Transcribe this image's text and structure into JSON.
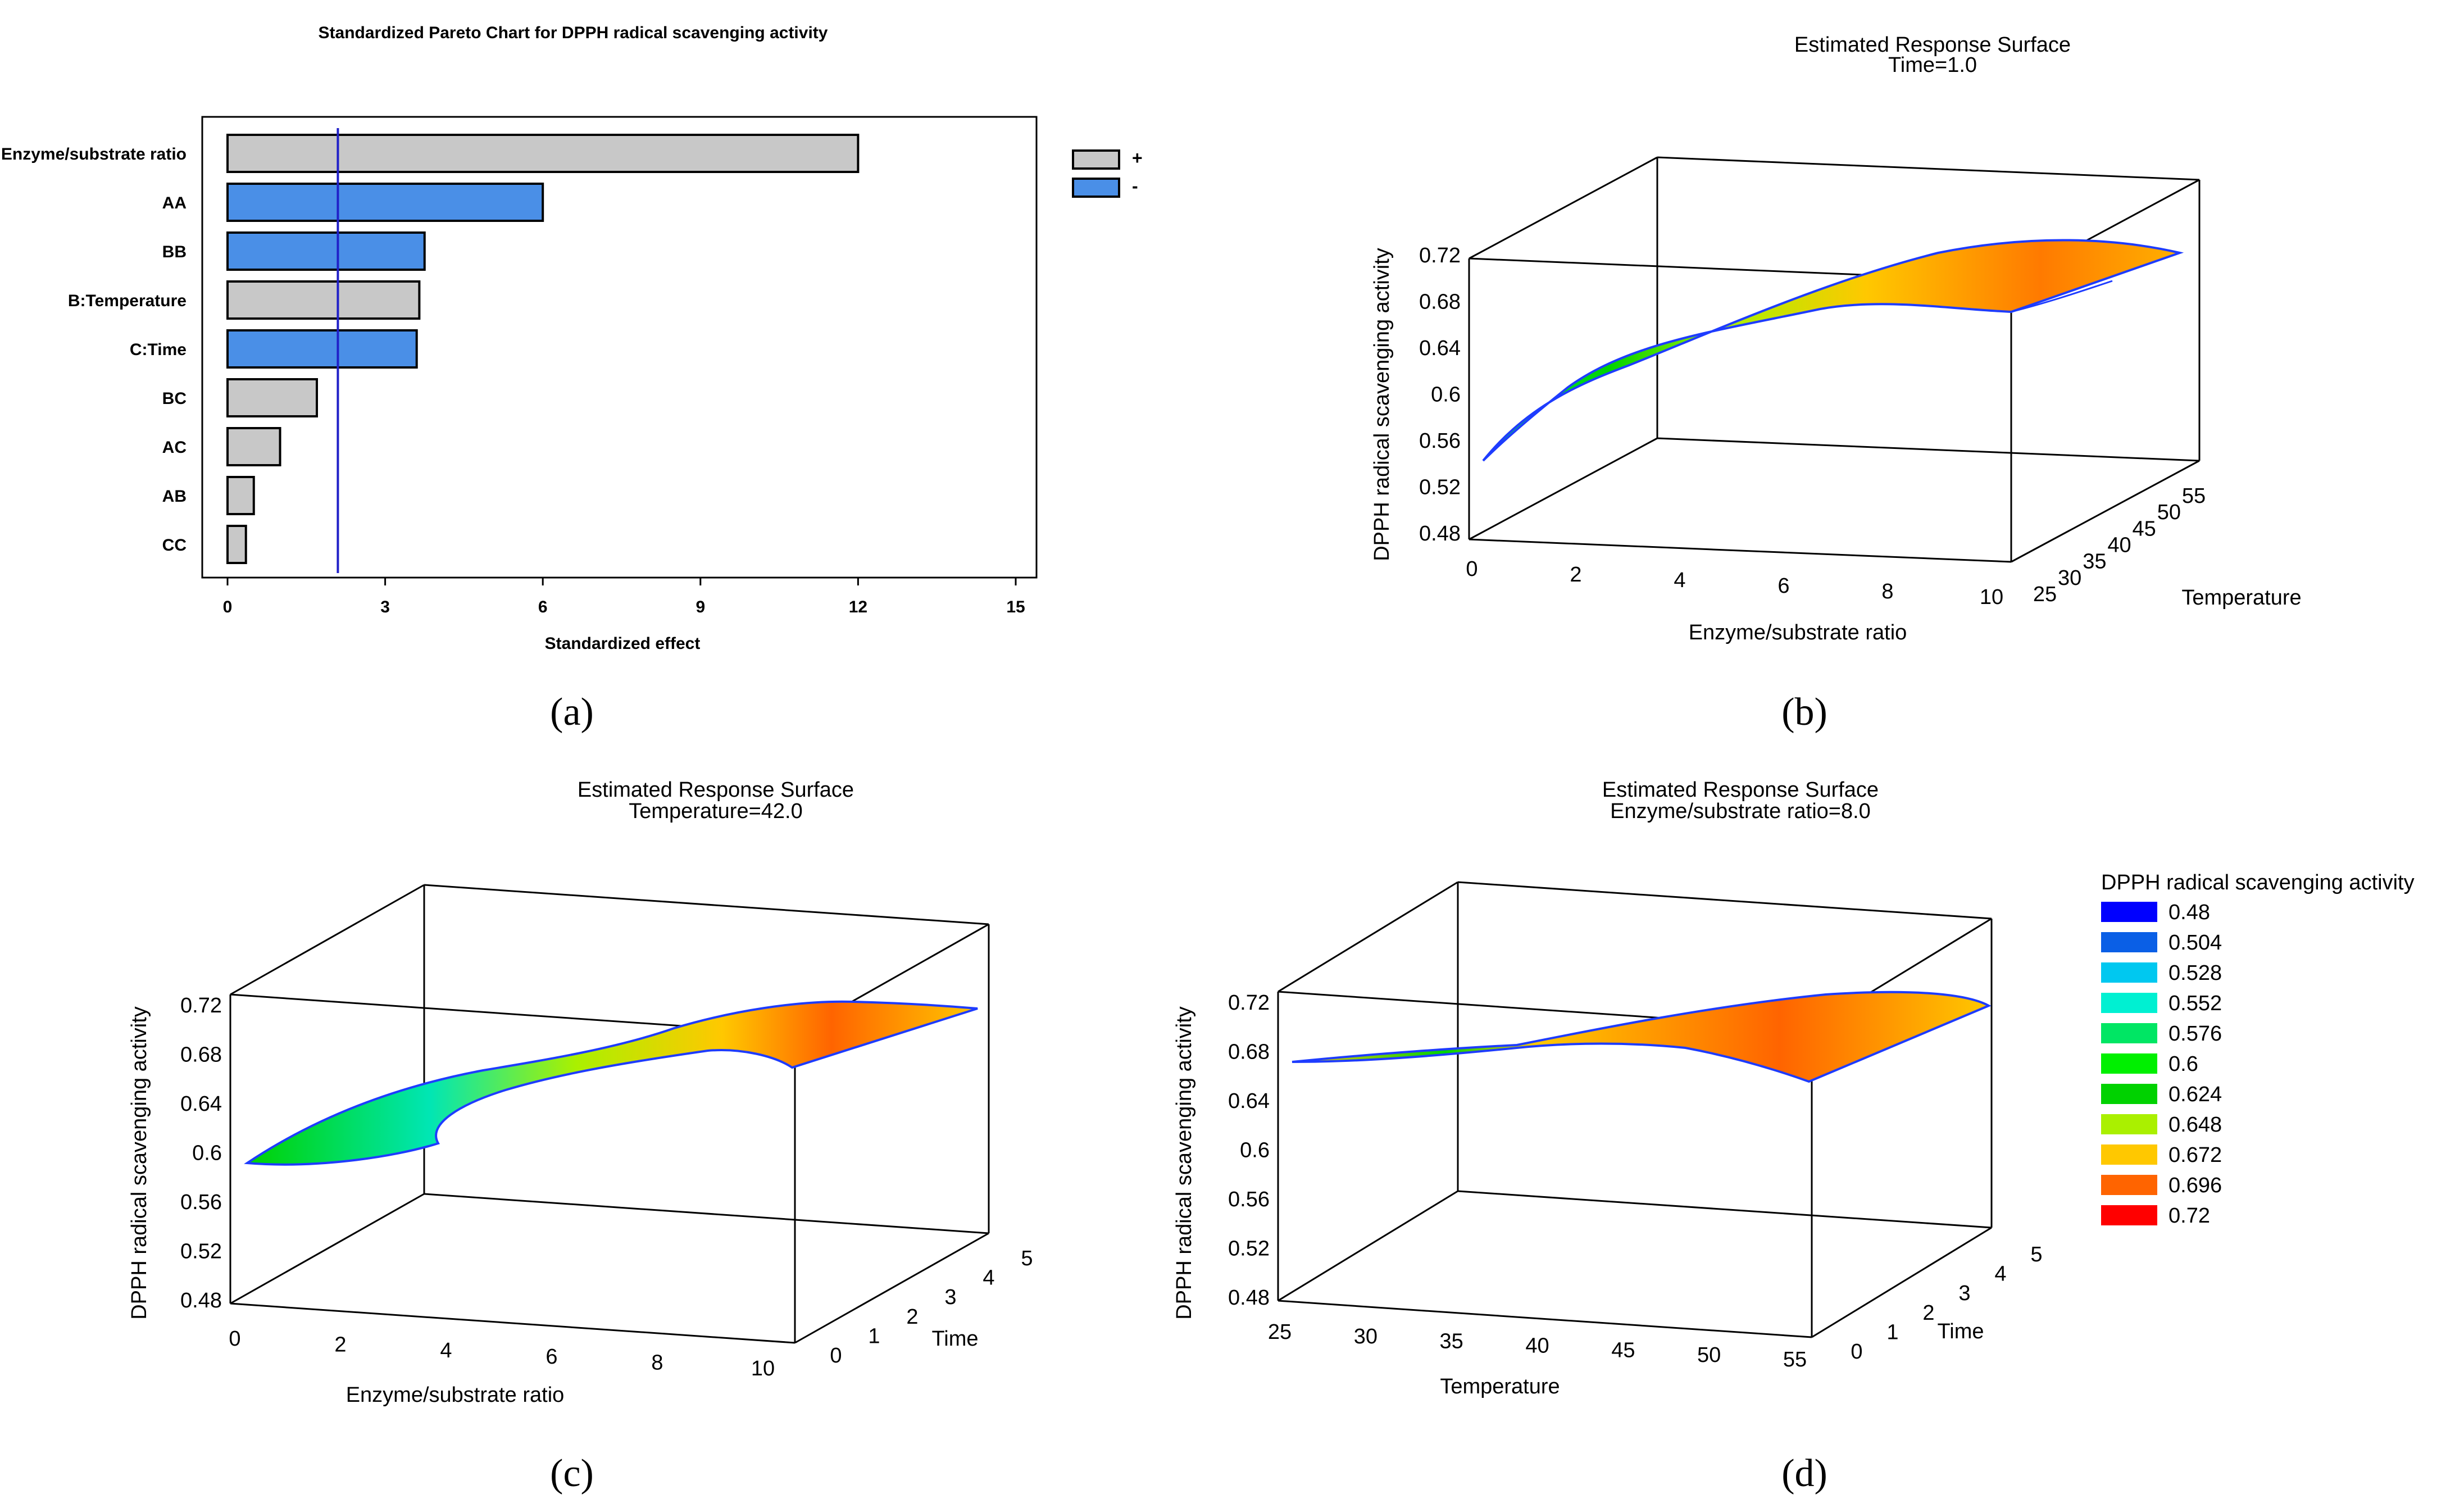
{
  "chart_data": [
    {
      "panel": "(a)",
      "type": "bar",
      "orientation": "horizontal",
      "title": "Standardized Pareto Chart for DPPH radical scavenging activity",
      "xlabel": "Standardized effect",
      "xlim": [
        0,
        15
      ],
      "xticks": [
        0,
        3,
        6,
        9,
        12,
        15
      ],
      "categories": [
        "A:Enzyme/substrate ratio",
        "AA",
        "BB",
        "B:Temperature",
        "C:Time",
        "BC",
        "AC",
        "AB",
        "CC"
      ],
      "values": [
        12.0,
        6.0,
        3.75,
        3.65,
        3.6,
        1.7,
        1.0,
        0.5,
        0.35
      ],
      "signs": [
        "+",
        "-",
        "-",
        "+",
        "-",
        "+",
        "+",
        "+",
        "+"
      ],
      "reference_line": 2.1,
      "legend": [
        {
          "label": "+",
          "color": "#c8c8c8"
        },
        {
          "label": "-",
          "color": "#4a8fe7"
        }
      ],
      "legend_position": "top-right"
    },
    {
      "panel": "(b)",
      "type": "surface3d",
      "title": "Estimated Response Surface",
      "subtitle": "Time=1.0",
      "xlabel": "Enzyme/substrate ratio",
      "ylabel": "Temperature",
      "zlabel": "DPPH radical scavenging activity",
      "xticks": [
        "0",
        "2",
        "4",
        "6",
        "8",
        "10"
      ],
      "yticks": [
        "25",
        "30",
        "35",
        "40",
        "45",
        "50",
        "55"
      ],
      "zticks": [
        "0.48",
        "0.52",
        "0.56",
        "0.6",
        "0.64",
        "0.68",
        "0.72"
      ],
      "xlim": [
        0,
        10
      ],
      "ylim": [
        25,
        55
      ],
      "zlim": [
        0.48,
        0.72
      ]
    },
    {
      "panel": "(c)",
      "type": "surface3d",
      "title": "Estimated Response Surface",
      "subtitle": "Temperature=42.0",
      "xlabel": "Enzyme/substrate ratio",
      "ylabel": "Time",
      "zlabel": "DPPH radical scavenging activity",
      "xticks": [
        "0",
        "2",
        "4",
        "6",
        "8",
        "10"
      ],
      "yticks": [
        "0",
        "1",
        "2",
        "3",
        "4",
        "5"
      ],
      "zticks": [
        "0.48",
        "0.52",
        "0.56",
        "0.6",
        "0.64",
        "0.68",
        "0.72"
      ],
      "xlim": [
        0,
        10
      ],
      "ylim": [
        0,
        5
      ],
      "zlim": [
        0.48,
        0.72
      ]
    },
    {
      "panel": "(d)",
      "type": "surface3d",
      "title": "Estimated Response Surface",
      "subtitle": "Enzyme/substrate ratio=8.0",
      "xlabel": "Temperature",
      "ylabel": "Time",
      "zlabel": "DPPH radical scavenging activity",
      "xticks": [
        "25",
        "30",
        "35",
        "40",
        "45",
        "50",
        "55"
      ],
      "yticks": [
        "0",
        "1",
        "2",
        "3",
        "4",
        "5"
      ],
      "zticks": [
        "0.48",
        "0.52",
        "0.56",
        "0.6",
        "0.64",
        "0.68",
        "0.72"
      ],
      "xlim": [
        25,
        55
      ],
      "ylim": [
        0,
        5
      ],
      "zlim": [
        0.48,
        0.72
      ],
      "legend_title": "DPPH radical scavenging activity",
      "legend": [
        {
          "label": "0.48",
          "color": "#0000ff"
        },
        {
          "label": "0.504",
          "color": "#0a5fe6"
        },
        {
          "label": "0.528",
          "color": "#00c8f0"
        },
        {
          "label": "0.552",
          "color": "#00f0d2"
        },
        {
          "label": "0.576",
          "color": "#00e664"
        },
        {
          "label": "0.6",
          "color": "#00f000"
        },
        {
          "label": "0.624",
          "color": "#00d200"
        },
        {
          "label": "0.648",
          "color": "#aaf000"
        },
        {
          "label": "0.672",
          "color": "#ffc800"
        },
        {
          "label": "0.696",
          "color": "#ff6400"
        },
        {
          "label": "0.72",
          "color": "#ff0000"
        }
      ],
      "legend_position": "right"
    }
  ],
  "panel_labels": [
    "(a)",
    "(b)",
    "(c)",
    "(d)"
  ]
}
